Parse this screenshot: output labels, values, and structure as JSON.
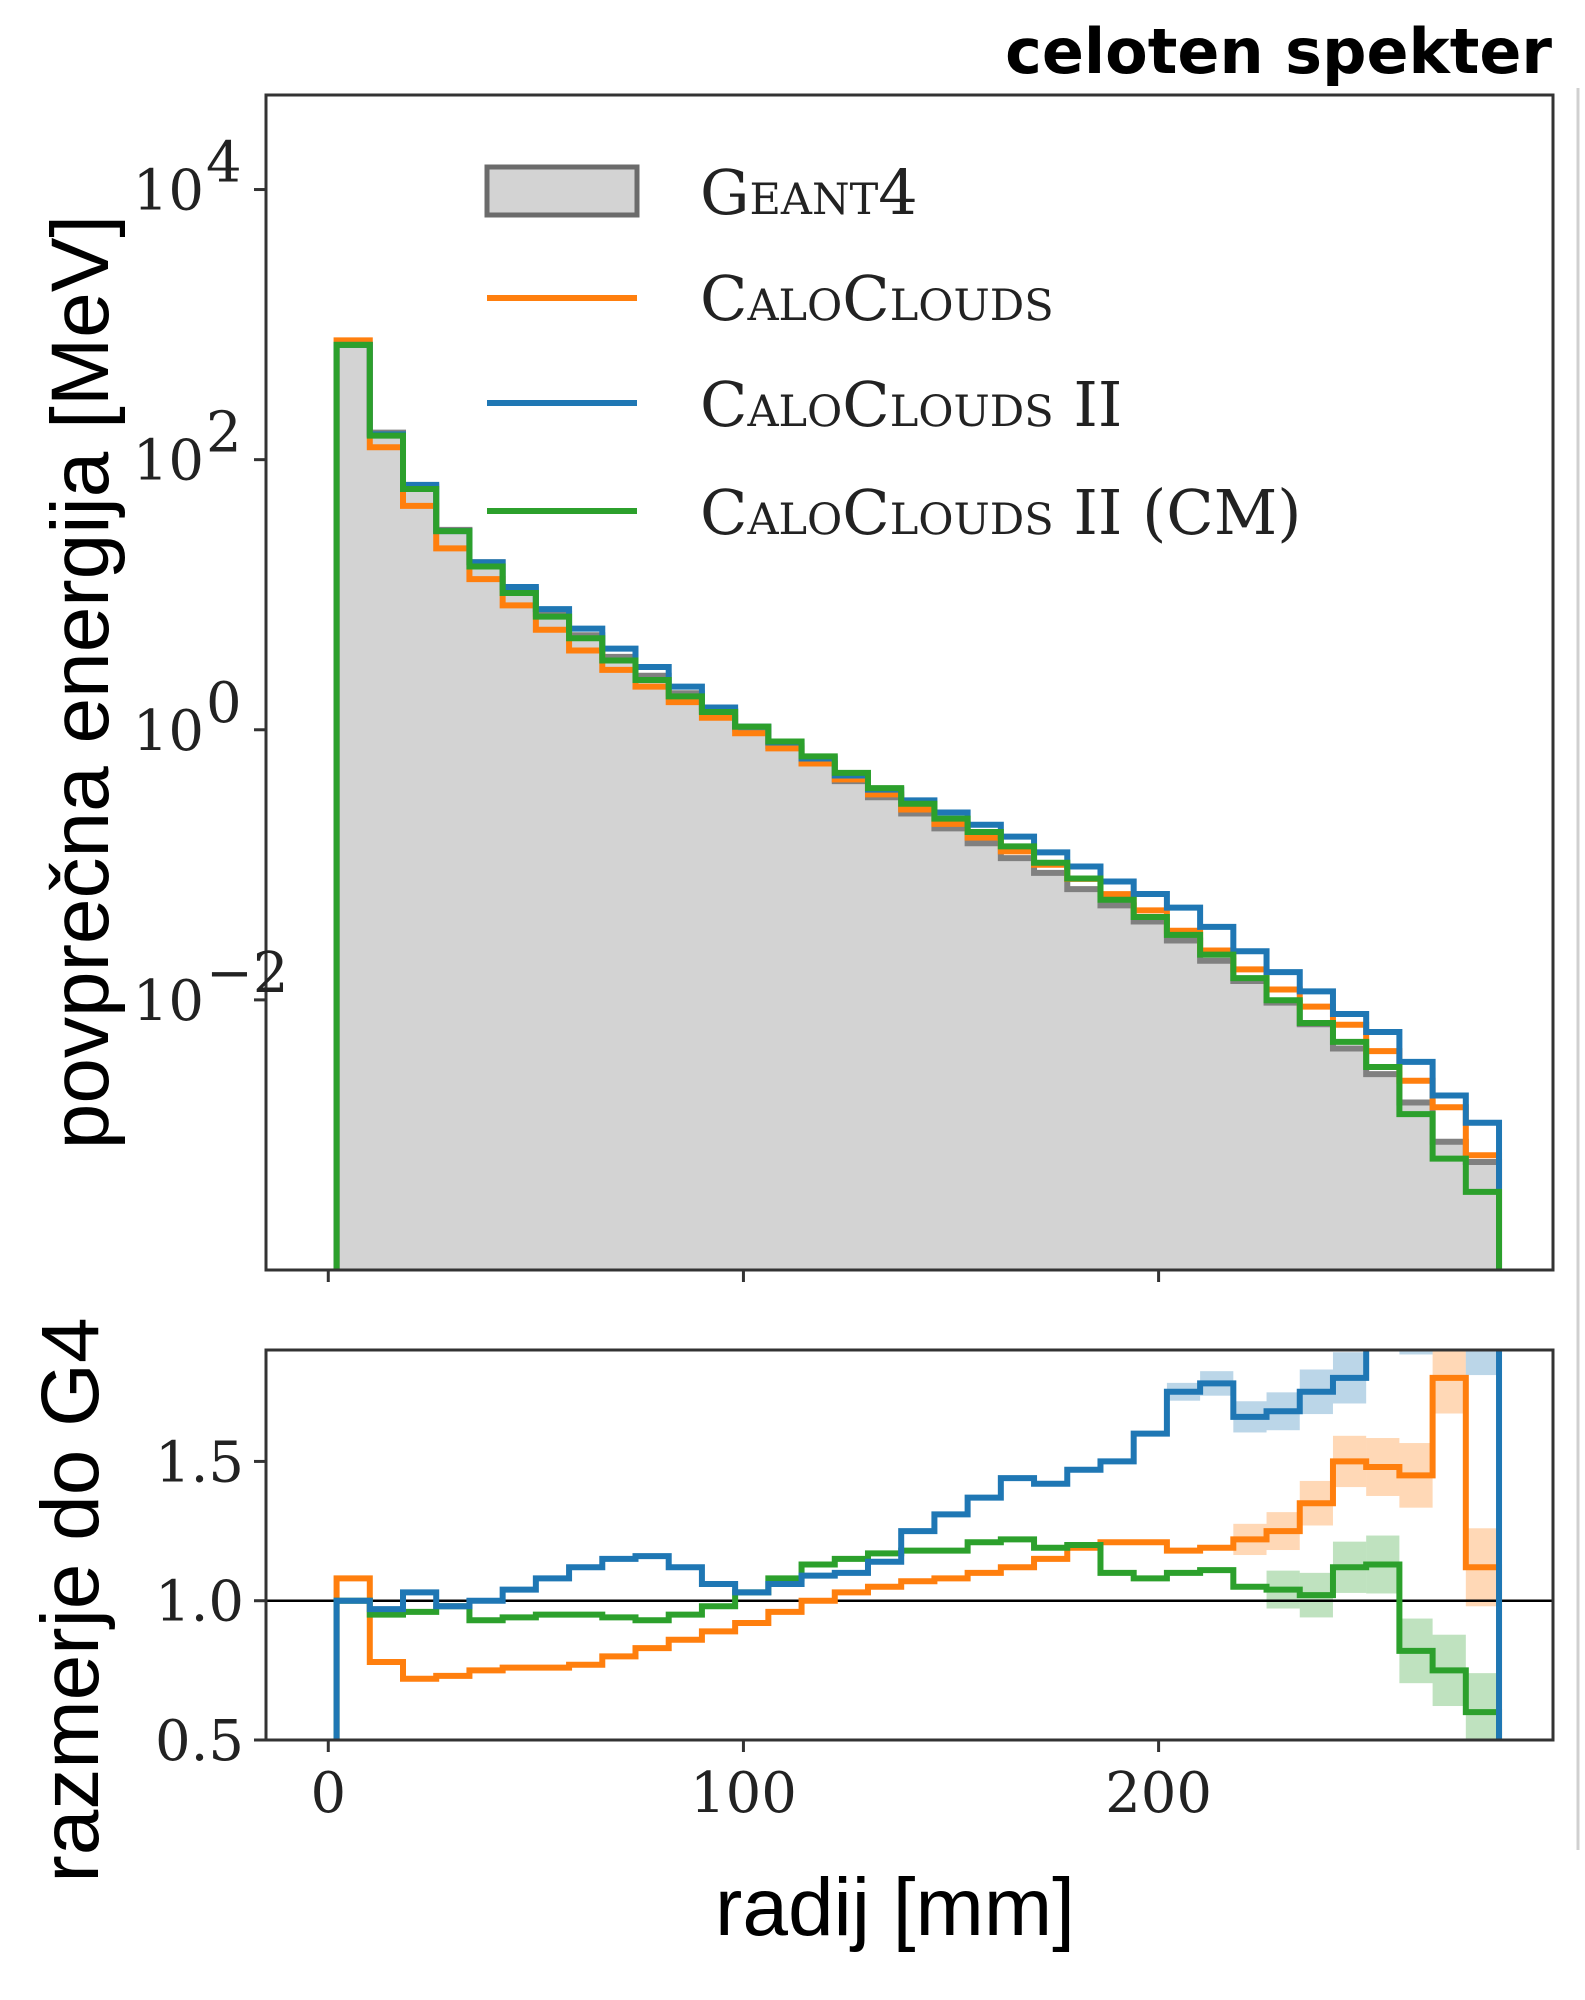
{
  "chart_data": {
    "type": "histogram",
    "title": "celoten spekter",
    "xlabel": "radij [mm]",
    "x_ticks": [
      "0",
      "100",
      "200"
    ],
    "xlim": [
      -15,
      295
    ],
    "bin_width": 8,
    "bin_edges": [
      2,
      10,
      18,
      26,
      34,
      42,
      50,
      58,
      66,
      74,
      82,
      90,
      98,
      106,
      114,
      122,
      130,
      138,
      146,
      154,
      162,
      170,
      178,
      186,
      194,
      202,
      210,
      218,
      226,
      234,
      242,
      250,
      258,
      266,
      274,
      282
    ],
    "panels": {
      "main": {
        "ylabel": "povprečna energija [MeV]",
        "yscale": "log",
        "ylim_log10": [
          -4,
          4.7
        ],
        "y_ticks": [
          {
            "value": 4,
            "label": "10",
            "exp": "4"
          },
          {
            "value": 2,
            "label": "10",
            "exp": "2"
          },
          {
            "value": 0,
            "label": "10",
            "exp": "0"
          },
          {
            "value": -2,
            "label": "10",
            "exp": "−2"
          }
        ]
      },
      "ratio": {
        "ylabel": "razmerje do G4",
        "ylim": [
          0.5,
          1.9
        ],
        "y_ticks": [
          "0.5",
          "1.0",
          "1.5"
        ],
        "reference_line": 1.0
      }
    },
    "series": [
      {
        "name": "Geant4",
        "color": "#808080",
        "fill": "#d3d3d3",
        "log10_values": [
          2.85,
          2.2,
          1.8,
          1.48,
          1.24,
          1.04,
          0.86,
          0.7,
          0.54,
          0.4,
          0.27,
          0.14,
          0.01,
          -0.12,
          -0.25,
          -0.38,
          -0.5,
          -0.62,
          -0.73,
          -0.84,
          -0.95,
          -1.06,
          -1.18,
          -1.3,
          -1.42,
          -1.56,
          -1.71,
          -1.86,
          -2.02,
          -2.18,
          -2.36,
          -2.55,
          -2.76,
          -3.05,
          -3.2
        ],
        "ratio": [
          1.0,
          1.0,
          1.0,
          1.0,
          1.0,
          1.0,
          1.0,
          1.0,
          1.0,
          1.0,
          1.0,
          1.0,
          1.0,
          1.0,
          1.0,
          1.0,
          1.0,
          1.0,
          1.0,
          1.0,
          1.0,
          1.0,
          1.0,
          1.0,
          1.0,
          1.0,
          1.0,
          1.0,
          1.0,
          1.0,
          1.0,
          1.0,
          1.0,
          1.0,
          1.0
        ]
      },
      {
        "name": "CaloClouds",
        "color": "#ff7f0e",
        "ratio": [
          1.08,
          0.78,
          0.72,
          0.73,
          0.75,
          0.76,
          0.76,
          0.77,
          0.8,
          0.83,
          0.86,
          0.89,
          0.92,
          0.96,
          1.0,
          1.03,
          1.05,
          1.07,
          1.08,
          1.1,
          1.12,
          1.15,
          1.19,
          1.21,
          1.21,
          1.18,
          1.19,
          1.22,
          1.25,
          1.35,
          1.5,
          1.48,
          1.45,
          1.8,
          1.12
        ]
      },
      {
        "name": "CaloClouds II",
        "color": "#1f77b4",
        "ratio": [
          1.0,
          0.97,
          1.03,
          0.98,
          1.0,
          1.04,
          1.08,
          1.12,
          1.15,
          1.16,
          1.12,
          1.06,
          1.03,
          1.06,
          1.09,
          1.1,
          1.14,
          1.25,
          1.31,
          1.37,
          1.44,
          1.42,
          1.47,
          1.5,
          1.6,
          1.75,
          1.78,
          1.66,
          1.68,
          1.75,
          1.8,
          2.05,
          2.0,
          2.2,
          1.95
        ]
      },
      {
        "name": "CaloClouds II (CM)",
        "color": "#2ca02c",
        "ratio": [
          1.0,
          0.95,
          0.96,
          0.98,
          0.93,
          0.94,
          0.95,
          0.95,
          0.94,
          0.93,
          0.95,
          0.98,
          1.03,
          1.08,
          1.13,
          1.15,
          1.17,
          1.18,
          1.18,
          1.21,
          1.22,
          1.19,
          1.2,
          1.1,
          1.08,
          1.1,
          1.11,
          1.05,
          1.04,
          1.02,
          1.12,
          1.13,
          0.82,
          0.75,
          0.6
        ]
      }
    ]
  }
}
